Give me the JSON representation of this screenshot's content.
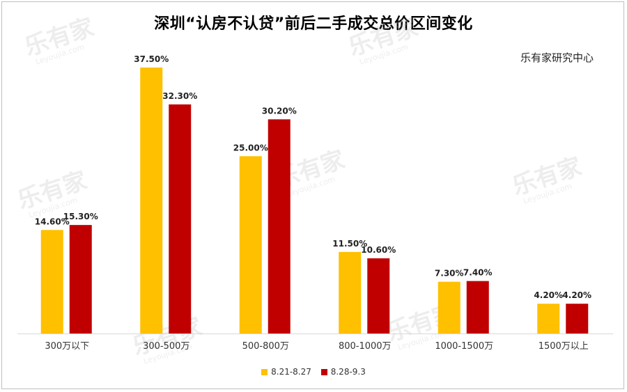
{
  "chart_data": {
    "type": "bar",
    "title": "深圳“认房不认贷”前后二手成交总价区间变化",
    "source": "乐有家研究中心",
    "categories": [
      "300万以下",
      "300-500万",
      "500-800万",
      "800-1000万",
      "1000-1500万",
      "1500万以上"
    ],
    "series": [
      {
        "name": "8.21-8.27",
        "color": "#FFC000",
        "values": [
          14.6,
          37.5,
          25.0,
          11.5,
          7.3,
          4.2
        ],
        "labels": [
          "14.60%",
          "37.50%",
          "25.00%",
          "11.50%",
          "7.30%",
          "4.20%"
        ]
      },
      {
        "name": "8.28-9.3",
        "color": "#C00000",
        "values": [
          15.3,
          32.3,
          30.2,
          10.6,
          7.4,
          4.2
        ],
        "labels": [
          "15.30%",
          "32.30%",
          "30.20%",
          "10.60%",
          "7.40%",
          "4.20%"
        ]
      }
    ],
    "ylim": [
      0,
      40
    ],
    "grid": false,
    "legend_position": "bottom",
    "watermark": "乐有家 Leyoujia.com"
  }
}
